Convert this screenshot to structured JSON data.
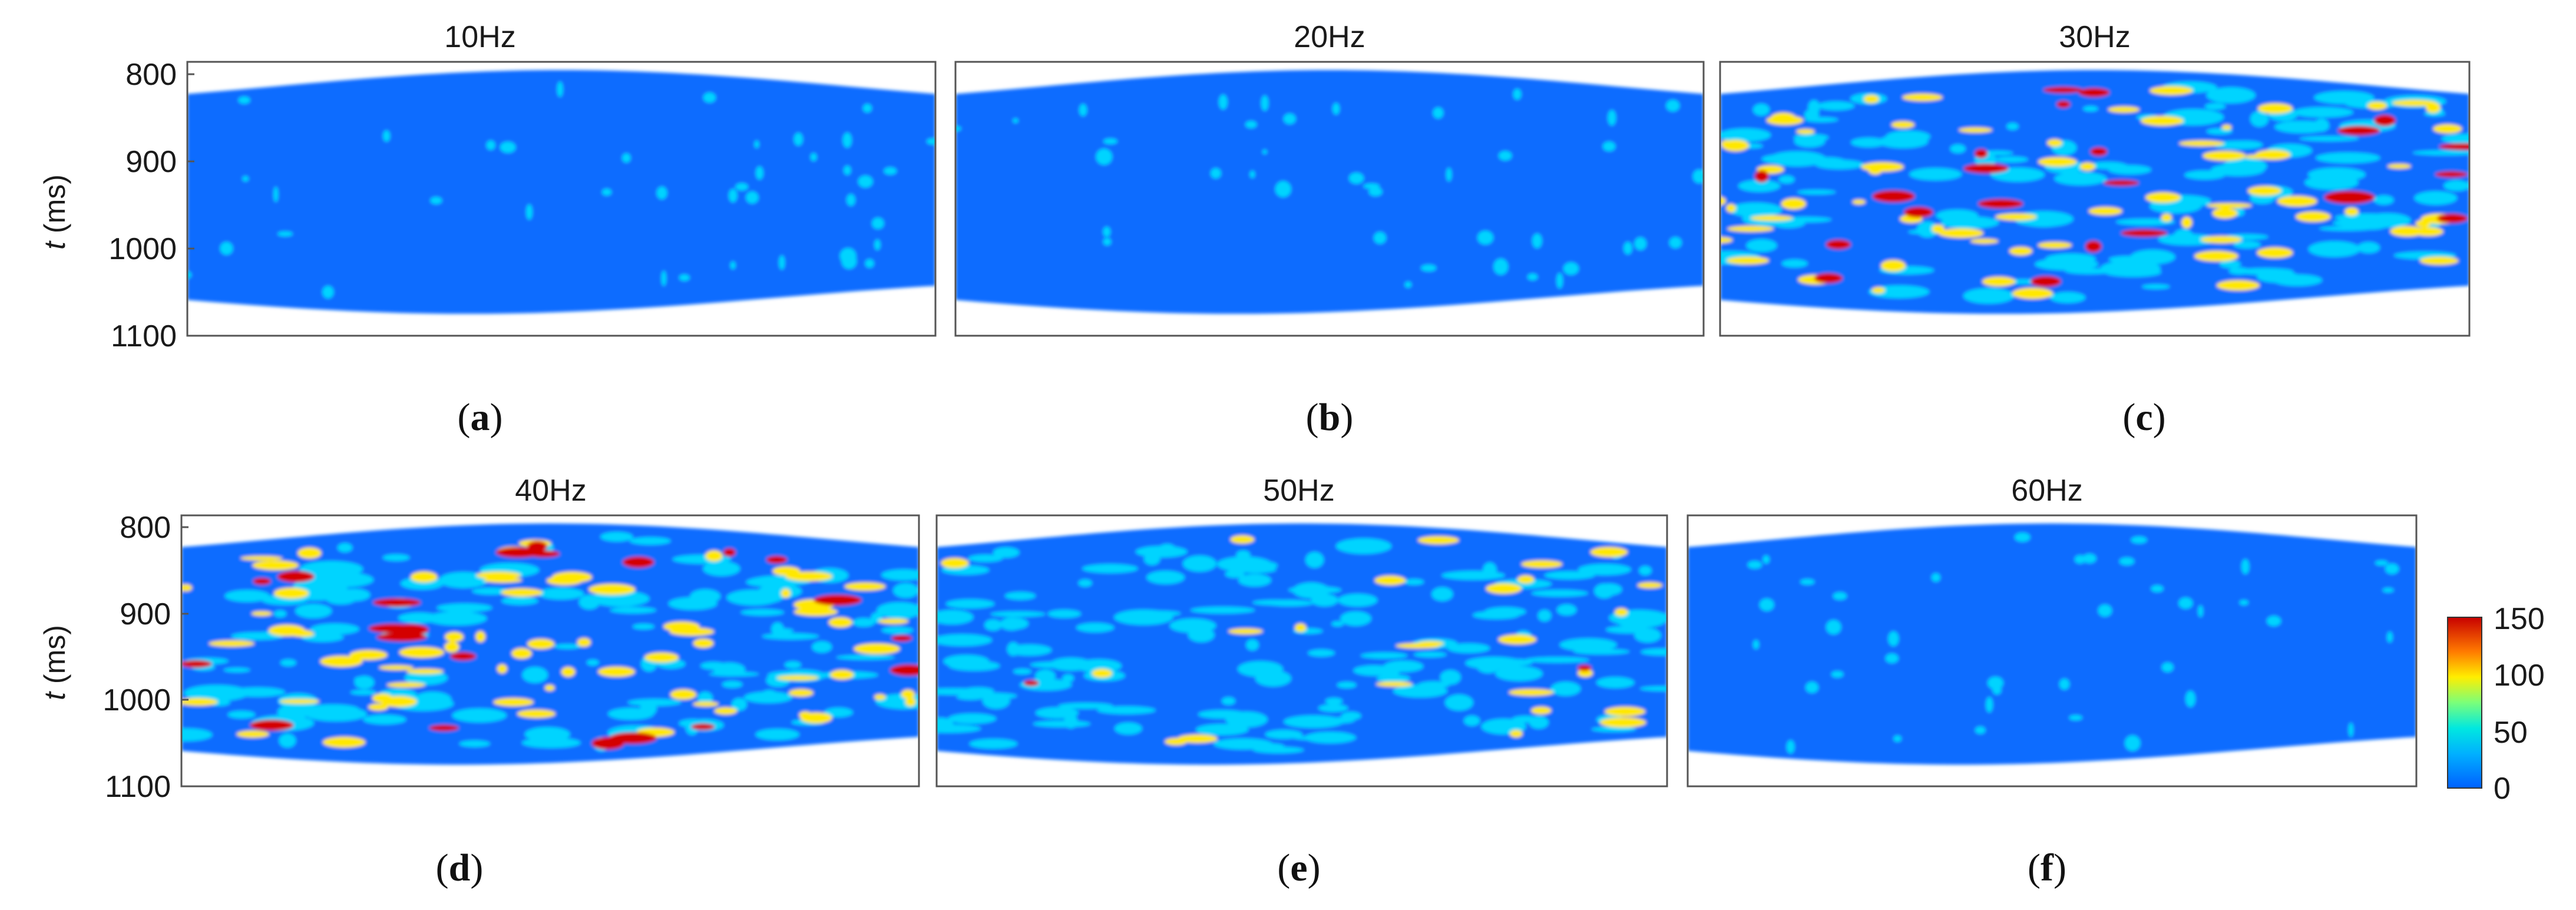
{
  "chart_data": {
    "type": "heatmap",
    "colormap": "jet",
    "colorbar": {
      "range": [
        0,
        150
      ],
      "ticks": [
        0,
        50,
        100,
        150
      ]
    },
    "y_axis": {
      "label_italic": "t",
      "label_unit": " (ms)",
      "range": [
        800,
        1100
      ],
      "reversed": true,
      "ticks": [
        800,
        900,
        1000,
        1100
      ]
    },
    "panels": [
      {
        "letter": "a",
        "title": "10Hz",
        "intensity": "low"
      },
      {
        "letter": "b",
        "title": "20Hz",
        "intensity": "low"
      },
      {
        "letter": "c",
        "title": "30Hz",
        "intensity": "high"
      },
      {
        "letter": "d",
        "title": "40Hz",
        "intensity": "high"
      },
      {
        "letter": "e",
        "title": "50Hz",
        "intensity": "medium"
      },
      {
        "letter": "f",
        "title": "60Hz",
        "intensity": "low"
      }
    ]
  },
  "colors": {
    "background": "#0a6cff",
    "cyan": "#00d4ff",
    "yellow": "#ffe800",
    "red": "#d40000"
  }
}
